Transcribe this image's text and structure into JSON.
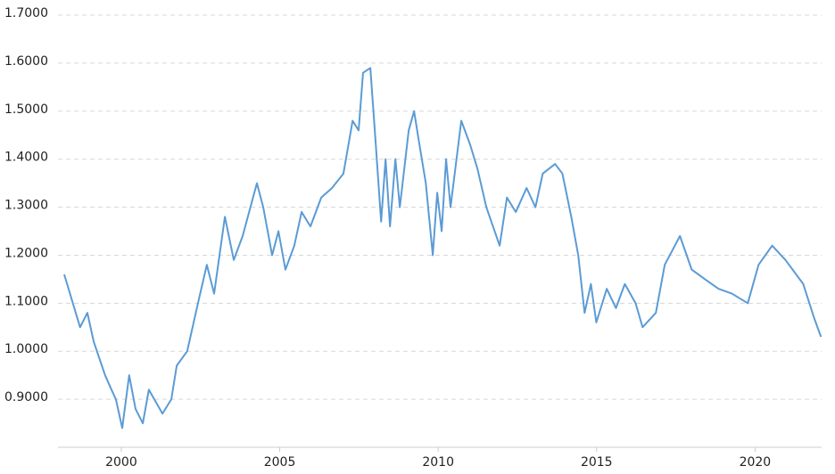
{
  "chart_data": {
    "type": "line",
    "x": [
      1998.2,
      1998.7,
      1998.93,
      1999.13,
      1999.49,
      1999.69,
      1999.83,
      2000.03,
      2000.25,
      2000.45,
      2000.68,
      2000.87,
      2001.3,
      2001.58,
      2001.75,
      2002.08,
      2002.42,
      2002.7,
      2002.93,
      2003.27,
      2003.55,
      2003.83,
      2004.28,
      2004.48,
      2004.76,
      2004.96,
      2005.18,
      2005.46,
      2005.69,
      2005.97,
      2006.31,
      2006.65,
      2007.01,
      2007.3,
      2007.49,
      2007.63,
      2007.86,
      2008.0,
      2008.2,
      2008.34,
      2008.48,
      2008.65,
      2008.79,
      2009.07,
      2009.24,
      2009.41,
      2009.61,
      2009.83,
      2009.97,
      2010.11,
      2010.25,
      2010.39,
      2010.73,
      2011.01,
      2011.24,
      2011.52,
      2011.94,
      2012.17,
      2012.45,
      2012.79,
      2013.07,
      2013.3,
      2013.69,
      2013.92,
      2014.2,
      2014.42,
      2014.62,
      2014.82,
      2014.99,
      2015.32,
      2015.61,
      2015.89,
      2016.23,
      2016.45,
      2016.87,
      2017.15,
      2017.63,
      2018.0,
      2018.42,
      2018.85,
      2019.27,
      2019.77,
      2020.11,
      2020.54,
      2020.96,
      2021.52,
      2021.86,
      2022.08
    ],
    "series": [
      {
        "color": "#5b9bd5",
        "values": [
          1.16,
          1.05,
          1.08,
          1.02,
          0.95,
          0.92,
          0.9,
          0.84,
          0.95,
          0.88,
          0.85,
          0.92,
          0.87,
          0.9,
          0.97,
          1.0,
          1.1,
          1.18,
          1.12,
          1.28,
          1.19,
          1.24,
          1.35,
          1.3,
          1.2,
          1.25,
          1.17,
          1.22,
          1.29,
          1.26,
          1.32,
          1.34,
          1.37,
          1.48,
          1.46,
          1.58,
          1.59,
          1.46,
          1.27,
          1.4,
          1.26,
          1.4,
          1.3,
          1.46,
          1.5,
          1.43,
          1.35,
          1.2,
          1.33,
          1.25,
          1.4,
          1.3,
          1.48,
          1.43,
          1.38,
          1.3,
          1.22,
          1.32,
          1.29,
          1.34,
          1.3,
          1.37,
          1.39,
          1.37,
          1.28,
          1.2,
          1.08,
          1.14,
          1.06,
          1.13,
          1.09,
          1.14,
          1.1,
          1.05,
          1.08,
          1.18,
          1.24,
          1.17,
          1.15,
          1.13,
          1.12,
          1.1,
          1.18,
          1.22,
          1.19,
          1.14,
          1.07,
          1.03
        ]
      }
    ],
    "xlim": [
      1998.2,
      2022.1
    ],
    "xticks": [
      2000,
      2005,
      2010,
      2015,
      2020
    ],
    "ylim": [
      0.8,
      1.7
    ],
    "yticks": [
      {
        "value": 0.9,
        "label": "0.9000"
      },
      {
        "value": 1.0,
        "label": "1.0000"
      },
      {
        "value": 1.1,
        "label": "1.1000"
      },
      {
        "value": 1.2,
        "label": "1.2000"
      },
      {
        "value": 1.3,
        "label": "1.3000"
      },
      {
        "value": 1.4,
        "label": "1.4000"
      },
      {
        "value": 1.5,
        "label": "1.5000"
      },
      {
        "value": 1.6,
        "label": "1.6000"
      },
      {
        "value": 1.7,
        "label": "1.7000"
      }
    ],
    "grid": true
  }
}
